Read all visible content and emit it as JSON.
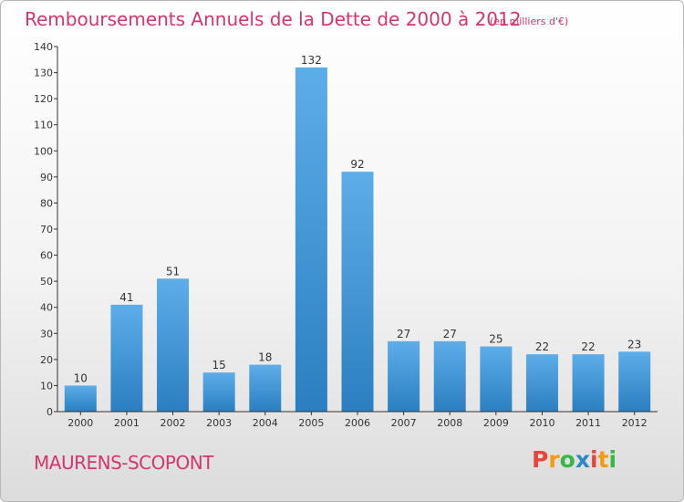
{
  "title": "Remboursements Annuels de la Dette de 2000 à 2012",
  "unit_note": "(en milliers d'€)",
  "commune": "MAURENS-SCOPONT",
  "logo": {
    "text": "Proxiti",
    "letter_colors": [
      "#e8453c",
      "#f39c12",
      "#3ab54a",
      "#2e88c8",
      "#e8453c",
      "#f39c12",
      "#3ab54a"
    ]
  },
  "colors": {
    "title": "#d4356e",
    "bar_light": "#5dade9",
    "bar_dark": "#2b7fc0",
    "axis": "#333333"
  },
  "chart_data": {
    "type": "bar",
    "categories": [
      "2000",
      "2001",
      "2002",
      "2003",
      "2004",
      "2005",
      "2006",
      "2007",
      "2008",
      "2009",
      "2010",
      "2011",
      "2012"
    ],
    "values": [
      10,
      41,
      51,
      15,
      18,
      132,
      92,
      27,
      27,
      25,
      22,
      22,
      23
    ],
    "ylim": [
      0,
      140
    ],
    "yticks": [
      0,
      10,
      20,
      30,
      40,
      50,
      60,
      70,
      80,
      90,
      100,
      110,
      120,
      130,
      140
    ],
    "xlabel": "",
    "ylabel": "",
    "grid": false,
    "data_labels": true
  }
}
